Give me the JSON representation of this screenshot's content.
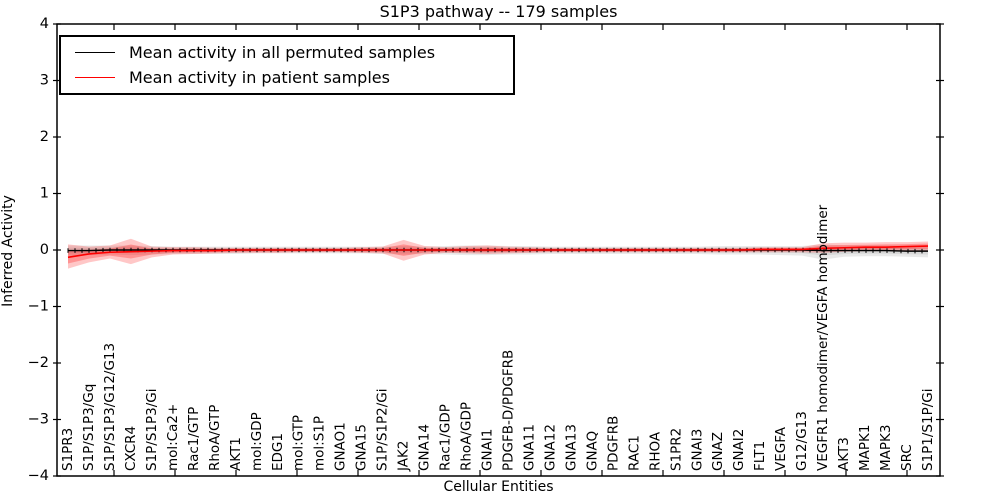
{
  "figure": {
    "background": "#ffffff"
  },
  "chart_data": {
    "type": "line",
    "title": "S1P3 pathway -- 179 samples",
    "xlabel": "Cellular Entities",
    "ylabel": "Inferred Activity",
    "ylim": [
      -4,
      4
    ],
    "yticks": [
      4,
      3,
      2,
      1,
      0,
      -1,
      -2,
      -3,
      -4
    ],
    "ytick_labels": [
      "4",
      "3",
      "2",
      "1",
      "0",
      "−1",
      "−2",
      "−3",
      "−4"
    ],
    "grid": false,
    "legend_position": "upper left",
    "legend": [
      {
        "label": "Mean activity in all permuted samples",
        "color": "#000000"
      },
      {
        "label": "Mean activity in patient samples",
        "color": "#ff0000"
      }
    ],
    "categories": [
      "S1PR3",
      "S1P/S1P3/Gq",
      "S1P/S1P3/G12/G13",
      "CXCR4",
      "S1P/S1P3/Gi",
      "mol:Ca2+",
      "Rac1/GTP",
      "RhoA/GTP",
      "AKT1",
      "mol:GDP",
      "EDG1",
      "mol:GTP",
      "mol:S1P",
      "GNAO1",
      "GNA15",
      "S1P/S1P2/Gi",
      "JAK2",
      "GNA14",
      "Rac1/GDP",
      "RhoA/GDP",
      "GNAI1",
      "PDGFB-D/PDGFRB",
      "GNA11",
      "GNA12",
      "GNA13",
      "GNAQ",
      "PDGFRB",
      "RAC1",
      "RHOA",
      "S1PR2",
      "GNAI3",
      "GNAZ",
      "GNAI2",
      "FLT1",
      "VEGFA",
      "G12/G13",
      "VEGFR1 homodimer/VEGFA homodimer",
      "AKT3",
      "MAPK1",
      "MAPK3",
      "SRC",
      "S1P1/S1P/Gi"
    ],
    "series": [
      {
        "name": "Mean activity in all permuted samples",
        "color": "#000000",
        "band_color": "#999999",
        "mean": [
          -0.01,
          -0.01,
          0,
          0,
          0,
          0,
          0,
          0,
          0,
          0,
          0,
          0,
          0,
          0,
          0,
          0,
          0,
          0,
          0,
          0,
          0,
          0,
          0,
          0,
          0,
          0,
          0,
          0,
          0,
          0,
          0,
          0,
          0,
          0,
          0,
          0,
          -0.01,
          -0.01,
          -0.01,
          -0.01,
          -0.02,
          -0.02
        ],
        "band_lo": [
          -0.1,
          -0.09,
          -0.08,
          -0.09,
          -0.08,
          -0.07,
          -0.07,
          -0.07,
          -0.07,
          -0.06,
          -0.06,
          -0.06,
          -0.06,
          -0.06,
          -0.06,
          -0.07,
          -0.08,
          -0.07,
          -0.08,
          -0.09,
          -0.09,
          -0.08,
          -0.08,
          -0.07,
          -0.07,
          -0.07,
          -0.07,
          -0.07,
          -0.07,
          -0.07,
          -0.07,
          -0.08,
          -0.08,
          -0.08,
          -0.09,
          -0.1,
          -0.17,
          -0.12,
          -0.11,
          -0.11,
          -0.12,
          -0.13
        ],
        "band_hi": [
          0.08,
          0.08,
          0.08,
          0.08,
          0.07,
          0.06,
          0.06,
          0.06,
          0.06,
          0.06,
          0.06,
          0.06,
          0.06,
          0.06,
          0.06,
          0.06,
          0.07,
          0.06,
          0.07,
          0.08,
          0.08,
          0.07,
          0.07,
          0.06,
          0.06,
          0.06,
          0.06,
          0.06,
          0.06,
          0.06,
          0.06,
          0.07,
          0.07,
          0.07,
          0.07,
          0.07,
          0.1,
          0.08,
          0.08,
          0.08,
          0.07,
          0.06
        ]
      },
      {
        "name": "Mean activity in patient samples",
        "color": "#ff0000",
        "band_color": "#ff0000",
        "mean": [
          -0.13,
          -0.07,
          -0.04,
          -0.03,
          -0.02,
          -0.01,
          -0.01,
          -0.01,
          0,
          0,
          0,
          0,
          0,
          0,
          0,
          0,
          0,
          0,
          0,
          0,
          0,
          0,
          0,
          0,
          0,
          0,
          0,
          0,
          0,
          0,
          0,
          0,
          0,
          0.01,
          0.01,
          0.01,
          0.03,
          0.04,
          0.05,
          0.05,
          0.06,
          0.07
        ],
        "band_lo": [
          -0.33,
          -0.22,
          -0.15,
          -0.25,
          -0.13,
          -0.08,
          -0.07,
          -0.06,
          -0.05,
          -0.05,
          -0.05,
          -0.04,
          -0.04,
          -0.04,
          -0.05,
          -0.06,
          -0.19,
          -0.08,
          -0.05,
          -0.06,
          -0.07,
          -0.06,
          -0.05,
          -0.04,
          -0.04,
          -0.04,
          -0.04,
          -0.04,
          -0.04,
          -0.04,
          -0.04,
          -0.04,
          -0.04,
          -0.04,
          -0.04,
          -0.04,
          -0.05,
          -0.03,
          -0.02,
          -0.02,
          -0.02,
          -0.02
        ],
        "band_hi": [
          0.1,
          0.06,
          0.08,
          0.2,
          0.06,
          0.05,
          0.05,
          0.04,
          0.04,
          0.04,
          0.04,
          0.04,
          0.04,
          0.04,
          0.05,
          0.06,
          0.18,
          0.07,
          0.05,
          0.07,
          0.08,
          0.06,
          0.05,
          0.04,
          0.04,
          0.04,
          0.04,
          0.04,
          0.04,
          0.04,
          0.04,
          0.04,
          0.04,
          0.05,
          0.05,
          0.05,
          0.12,
          0.13,
          0.13,
          0.14,
          0.14,
          0.15
        ]
      }
    ]
  }
}
